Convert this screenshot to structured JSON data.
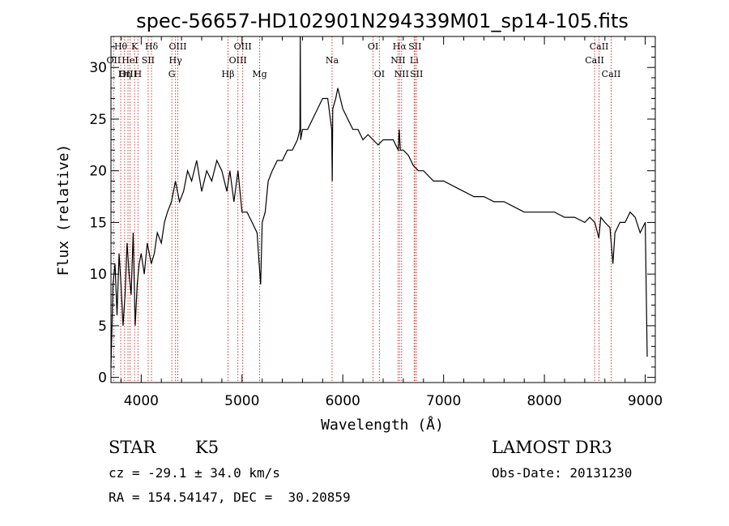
{
  "chart_data": {
    "type": "line",
    "title": "spec-56657-HD102901N294339M01_sp14-105.fits",
    "xlabel": "Wavelength (Å)",
    "ylabel": "Flux (relative)",
    "xlim": [
      3700,
      9100
    ],
    "ylim": [
      -0.5,
      33
    ],
    "xticks": [
      4000,
      5000,
      6000,
      7000,
      8000,
      9000
    ],
    "yticks": [
      0,
      5,
      10,
      15,
      20,
      25,
      30
    ],
    "grid": false,
    "line_color": "#000000",
    "marker_color": "#d33a3a",
    "series": [
      {
        "x": [
          3700,
          3720,
          3740,
          3760,
          3780,
          3800,
          3820,
          3840,
          3860,
          3880,
          3900,
          3920,
          3940,
          3960,
          3980,
          4000,
          4030,
          4060,
          4100,
          4130,
          4160,
          4200,
          4230,
          4260,
          4300,
          4340,
          4380,
          4420,
          4460,
          4500,
          4550,
          4600,
          4650,
          4700,
          4750,
          4800,
          4850,
          4880,
          4920,
          4960,
          5000,
          5050,
          5100,
          5150,
          5170,
          5185,
          5200,
          5230,
          5260,
          5300,
          5350,
          5400,
          5450,
          5500,
          5550,
          5575,
          5578,
          5582,
          5600,
          5650,
          5700,
          5750,
          5800,
          5850,
          5890,
          5895,
          5900,
          5930,
          5950,
          6000,
          6050,
          6100,
          6150,
          6200,
          6250,
          6300,
          6350,
          6400,
          6450,
          6500,
          6550,
          6560,
          6570,
          6600,
          6650,
          6700,
          6750,
          6800,
          6850,
          6900,
          6950,
          7000,
          7100,
          7200,
          7300,
          7400,
          7500,
          7600,
          7700,
          7800,
          7900,
          8000,
          8100,
          8200,
          8300,
          8400,
          8450,
          8500,
          8540,
          8560,
          8600,
          8650,
          8680,
          8700,
          8750,
          8800,
          8850,
          8900,
          8950,
          9000,
          9020
        ],
        "y": [
          1,
          9,
          11,
          6,
          12,
          9,
          5,
          8,
          13,
          10,
          8,
          14,
          5,
          9,
          11,
          12,
          10,
          13,
          11,
          12,
          14,
          13,
          15,
          16,
          17,
          19,
          17,
          18,
          20,
          19,
          21,
          18,
          20,
          19,
          21,
          20,
          18,
          20,
          17,
          20,
          16,
          16,
          15,
          14,
          11,
          9,
          15,
          16,
          19,
          20,
          21,
          21,
          22,
          22,
          23,
          24,
          33,
          23,
          24,
          24,
          25,
          26,
          27,
          27,
          24,
          19,
          26,
          27,
          28,
          26,
          25,
          24,
          24,
          23,
          23.5,
          23,
          22.5,
          23,
          23,
          23,
          22,
          24,
          22,
          22,
          21.5,
          20.5,
          20,
          20,
          19.5,
          19,
          19,
          19,
          18.5,
          18,
          17.5,
          17.5,
          17,
          17,
          16.5,
          16,
          16,
          16,
          16,
          15.5,
          15.5,
          15,
          15.5,
          15,
          13.5,
          15.5,
          15,
          14.5,
          11,
          14,
          15,
          15,
          16,
          15.5,
          14,
          15,
          2
        ]
      }
    ],
    "lines": [
      {
        "name": "Hθ",
        "x": 3797,
        "row": 1
      },
      {
        "name": "OII",
        "x": 3727,
        "row": 2
      },
      {
        "name": "OIII",
        "x": 3869,
        "row": 3
      },
      {
        "name": "K",
        "x": 3934,
        "row": 1
      },
      {
        "name": "HeI",
        "x": 3889,
        "row": 2
      },
      {
        "name": "Hη",
        "x": 3835,
        "row": 3
      },
      {
        "name": "SII",
        "x": 4069,
        "row": 2
      },
      {
        "name": "H",
        "x": 3968,
        "row": 3
      },
      {
        "name": "Hδ",
        "x": 4102,
        "row": 1
      },
      {
        "name": "OIII",
        "x": 4363,
        "row": 1
      },
      {
        "name": "Hγ",
        "x": 4340,
        "row": 2
      },
      {
        "name": "G",
        "x": 4304,
        "row": 3
      },
      {
        "name": "Hβ",
        "x": 4861,
        "row": 3
      },
      {
        "name": "OIII",
        "x": 5007,
        "row": 1
      },
      {
        "name": "OIII",
        "x": 4959,
        "row": 2
      },
      {
        "name": "Mg",
        "x": 5175,
        "row": 3
      },
      {
        "name": "Na",
        "x": 5893,
        "row": 2
      },
      {
        "name": "OI",
        "x": 6300,
        "row": 1
      },
      {
        "name": "OI",
        "x": 6363,
        "row": 3
      },
      {
        "name": "Hα",
        "x": 6563,
        "row": 1
      },
      {
        "name": "SII",
        "x": 6716,
        "row": 1
      },
      {
        "name": "NII",
        "x": 6548,
        "row": 2
      },
      {
        "name": "Li",
        "x": 6708,
        "row": 2
      },
      {
        "name": "NII",
        "x": 6583,
        "row": 3
      },
      {
        "name": "SII",
        "x": 6731,
        "row": 3
      },
      {
        "name": "CaII",
        "x": 8542,
        "row": 1
      },
      {
        "name": "CaII",
        "x": 8498,
        "row": 2
      },
      {
        "name": "CaII",
        "x": 8662,
        "row": 3
      }
    ]
  },
  "info": {
    "object_type": "STAR",
    "subclass": "K5",
    "survey": "LAMOST DR3",
    "redshift": "cz = -29.1 ± 34.0 km/s",
    "obs_date": "Obs-Date: 20131230",
    "coords": "RA = 154.54147, DEC =  30.20859"
  }
}
